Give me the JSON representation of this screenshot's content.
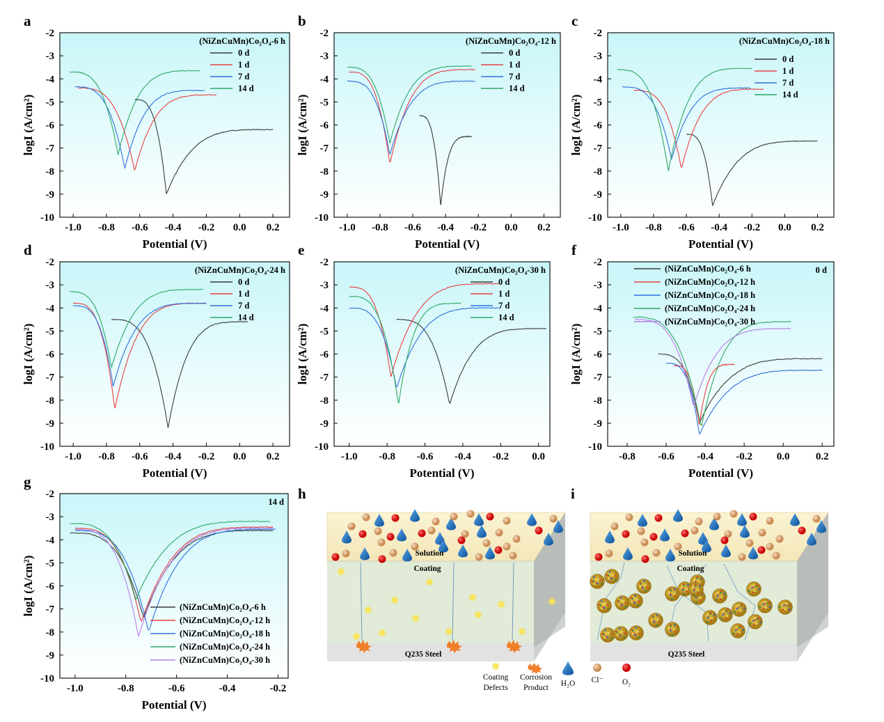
{
  "figure": {
    "xlabel": "Potential (V)",
    "ylabel": "logI (A/cm²)",
    "series_colors": [
      "#3a3a3a",
      "#e8403f",
      "#2e6fdc",
      "#2ea865",
      "#b77ce6"
    ]
  },
  "chart_data": [
    {
      "label": "a",
      "type": "line",
      "title": "(NiZnCuMn)Co₂O₄-6 h",
      "xlim": [
        -1.08,
        0.3
      ],
      "ylim": [
        -10,
        -2
      ],
      "xticks": [
        "-1.0",
        "-0.8",
        "-0.6",
        "-0.4",
        "-0.2",
        "0.0",
        "0.2"
      ],
      "yticks": [
        "-10",
        "-9",
        "-8",
        "-7",
        "-6",
        "-5",
        "-4",
        "-3",
        "-2"
      ],
      "series": [
        {
          "name": "0 d",
          "ecorr": -0.44,
          "xstart": -0.63,
          "xend": 0.2,
          "ymin": -9.0,
          "yleft": -4.9,
          "yright": -6.2
        },
        {
          "name": "1 d",
          "ecorr": -0.63,
          "xstart": -0.97,
          "xend": -0.14,
          "ymin": -8.0,
          "yleft": -4.4,
          "yright": -4.7
        },
        {
          "name": "7 d",
          "ecorr": -0.69,
          "xstart": -0.99,
          "xend": -0.21,
          "ymin": -7.9,
          "yleft": -4.35,
          "yright": -4.5
        },
        {
          "name": "14 d",
          "ecorr": -0.73,
          "xstart": -1.02,
          "xend": -0.24,
          "ymin": -7.3,
          "yleft": -3.7,
          "yright": -3.65
        }
      ]
    },
    {
      "label": "b",
      "type": "line",
      "title": "(NiZnCuMn)Co₂O₄-12 h",
      "xlim": [
        -1.08,
        0.3
      ],
      "ylim": [
        -10,
        -2
      ],
      "xticks": [
        "-1.0",
        "-0.8",
        "-0.6",
        "-0.4",
        "-0.2",
        "0.0",
        "0.2"
      ],
      "yticks": [
        "-10",
        "-9",
        "-8",
        "-7",
        "-6",
        "-5",
        "-4",
        "-3",
        "-2"
      ],
      "series": [
        {
          "name": "0 d",
          "ecorr": -0.43,
          "xstart": -0.56,
          "xend": -0.24,
          "ymin": -9.5,
          "yleft": -5.6,
          "yright": -6.5
        },
        {
          "name": "1 d",
          "ecorr": -0.74,
          "xstart": -0.99,
          "xend": -0.22,
          "ymin": -7.7,
          "yleft": -3.7,
          "yright": -3.6
        },
        {
          "name": "7 d",
          "ecorr": -0.74,
          "xstart": -1.0,
          "xend": -0.22,
          "ymin": -7.3,
          "yleft": -4.1,
          "yright": -4.1
        },
        {
          "name": "14 d",
          "ecorr": -0.74,
          "xstart": -1.0,
          "xend": -0.24,
          "ymin": -6.8,
          "yleft": -3.5,
          "yright": -3.45
        }
      ]
    },
    {
      "label": "c",
      "type": "line",
      "title": "(NiZnCuMn)Co₂O₄-18 h",
      "xlim": [
        -1.08,
        0.3
      ],
      "ylim": [
        -10,
        -2
      ],
      "xticks": [
        "-1.0",
        "-0.8",
        "-0.6",
        "-0.4",
        "-0.2",
        "0.0",
        "0.2"
      ],
      "yticks": [
        "-10",
        "-9",
        "-8",
        "-7",
        "-6",
        "-5",
        "-4",
        "-3",
        "-2"
      ],
      "series": [
        {
          "name": "0 d",
          "ecorr": -0.44,
          "xstart": -0.6,
          "xend": 0.2,
          "ymin": -9.5,
          "yleft": -6.4,
          "yright": -6.7
        },
        {
          "name": "1 d",
          "ecorr": -0.63,
          "xstart": -0.92,
          "xend": -0.13,
          "ymin": -7.9,
          "yleft": -4.5,
          "yright": -4.45
        },
        {
          "name": "7 d",
          "ecorr": -0.69,
          "xstart": -0.99,
          "xend": -0.21,
          "ymin": -7.5,
          "yleft": -4.35,
          "yright": -4.4
        },
        {
          "name": "14 d",
          "ecorr": -0.71,
          "xstart": -1.02,
          "xend": -0.2,
          "ymin": -8.0,
          "yleft": -3.6,
          "yright": -3.55
        }
      ]
    },
    {
      "label": "d",
      "type": "line",
      "title": "(NiZnCuMn)Co₂O₄-24 h",
      "xlim": [
        -1.08,
        0.3
      ],
      "ylim": [
        -10,
        -2
      ],
      "xticks": [
        "-1.0",
        "-0.8",
        "-0.6",
        "-0.4",
        "-0.2",
        "0.0",
        "0.2"
      ],
      "yticks": [
        "-10",
        "-9",
        "-8",
        "-7",
        "-6",
        "-5",
        "-4",
        "-3",
        "-2"
      ],
      "series": [
        {
          "name": "0 d",
          "ecorr": -0.43,
          "xstart": -0.77,
          "xend": 0.05,
          "ymin": -9.2,
          "yleft": -4.5,
          "yright": -4.6
        },
        {
          "name": "1 d",
          "ecorr": -0.75,
          "xstart": -1.0,
          "xend": -0.2,
          "ymin": -8.4,
          "yleft": -3.8,
          "yright": -3.8
        },
        {
          "name": "7 d",
          "ecorr": -0.76,
          "xstart": -1.0,
          "xend": -0.2,
          "ymin": -7.4,
          "yleft": -3.9,
          "yright": -3.8
        },
        {
          "name": "14 d",
          "ecorr": -0.77,
          "xstart": -1.02,
          "xend": -0.22,
          "ymin": -6.6,
          "yleft": -3.3,
          "yright": -3.2
        }
      ]
    },
    {
      "label": "e",
      "type": "line",
      "title": "(NiZnCuMn)Co₂O₄-30 h",
      "xlim": [
        -1.08,
        0.06
      ],
      "ylim": [
        -10,
        -2
      ],
      "xticks": [
        "-1.0",
        "-0.8",
        "-0.6",
        "-0.4",
        "-0.2",
        "0.0"
      ],
      "yticks": [
        "-10",
        "-9",
        "-8",
        "-7",
        "-6",
        "-5",
        "-4",
        "-3",
        "-2"
      ],
      "series": [
        {
          "name": "0 d",
          "ecorr": -0.47,
          "xstart": -0.75,
          "xend": 0.04,
          "ymin": -8.2,
          "yleft": -4.5,
          "yright": -4.9
        },
        {
          "name": "1 d",
          "ecorr": -0.78,
          "xstart": -1.0,
          "xend": -0.21,
          "ymin": -7.0,
          "yleft": -3.1,
          "yright": -2.95
        },
        {
          "name": "7 d",
          "ecorr": -0.75,
          "xstart": -1.0,
          "xend": -0.21,
          "ymin": -7.5,
          "yleft": -4.0,
          "yright": -4.0
        },
        {
          "name": "14 d",
          "ecorr": -0.74,
          "xstart": -1.0,
          "xend": -0.41,
          "ymin": -8.2,
          "yleft": -3.5,
          "yright": -3.8
        }
      ]
    },
    {
      "label": "f",
      "type": "line",
      "title": "0 d",
      "xlim": [
        -0.9,
        0.26
      ],
      "ylim": [
        -10,
        -2
      ],
      "xticks": [
        "-0.8",
        "-0.6",
        "-0.4",
        "-0.2",
        "0.0",
        "0.2"
      ],
      "yticks": [
        "-10",
        "-9",
        "-8",
        "-7",
        "-6",
        "-5",
        "-4",
        "-3",
        "-2"
      ],
      "series": [
        {
          "name": "(NiZnCuMn)Co₂O₄-6 h",
          "ecorr": -0.43,
          "xstart": -0.64,
          "xend": 0.2,
          "ymin": -9.0,
          "yleft": -6.0,
          "yright": -6.2
        },
        {
          "name": "(NiZnCuMn)Co₂O₄-12 h",
          "ecorr": -0.43,
          "xstart": -0.56,
          "xend": -0.25,
          "ymin": -9.1,
          "yleft": -6.5,
          "yright": -6.45
        },
        {
          "name": "(NiZnCuMn)Co₂O₄-18 h",
          "ecorr": -0.43,
          "xstart": -0.6,
          "xend": 0.2,
          "ymin": -9.5,
          "yleft": -6.4,
          "yright": -6.7
        },
        {
          "name": "(NiZnCuMn)Co₂O₄-24 h",
          "ecorr": -0.42,
          "xstart": -0.77,
          "xend": 0.04,
          "ymin": -9.2,
          "yleft": -4.4,
          "yright": -4.6
        },
        {
          "name": "(NiZnCuMn)Co₂O₄-30 h",
          "ecorr": -0.46,
          "xstart": -0.76,
          "xend": 0.04,
          "ymin": -8.3,
          "yleft": -4.5,
          "yright": -4.9
        }
      ]
    },
    {
      "label": "g",
      "type": "line",
      "title": "14 d",
      "xlim": [
        -1.06,
        -0.16
      ],
      "ylim": [
        -10,
        -2
      ],
      "xticks": [
        "-1.0",
        "-0.8",
        "-0.6",
        "-0.4",
        "-0.2"
      ],
      "yticks": [
        "-10",
        "-9",
        "-8",
        "-7",
        "-6",
        "-5",
        "-4",
        "-3",
        "-2"
      ],
      "series": [
        {
          "name": "(NiZnCuMn)Co₂O₄-6 h",
          "ecorr": -0.73,
          "xstart": -1.02,
          "xend": -0.22,
          "ymin": -7.4,
          "yleft": -3.7,
          "yright": -3.6
        },
        {
          "name": "(NiZnCuMn)Co₂O₄-12 h",
          "ecorr": -0.74,
          "xstart": -1.0,
          "xend": -0.22,
          "ymin": -7.6,
          "yleft": -3.5,
          "yright": -3.45
        },
        {
          "name": "(NiZnCuMn)Co₂O₄-18 h",
          "ecorr": -0.71,
          "xstart": -1.0,
          "xend": -0.21,
          "ymin": -8.0,
          "yleft": -3.6,
          "yright": -3.55
        },
        {
          "name": "(NiZnCuMn)Co₂O₄-24 h",
          "ecorr": -0.76,
          "xstart": -1.02,
          "xend": -0.23,
          "ymin": -6.6,
          "yleft": -3.3,
          "yright": -3.2
        },
        {
          "name": "(NiZnCuMn)Co₂O₄-30 h",
          "ecorr": -0.75,
          "xstart": -1.0,
          "xend": -0.22,
          "ymin": -8.2,
          "yleft": -3.55,
          "yright": -3.5
        }
      ]
    }
  ],
  "schematics": {
    "h": {
      "label": "h",
      "solution": "Solution",
      "coating": "Coating",
      "steel": "Q235 Steel"
    },
    "i": {
      "label": "i",
      "solution": "Solution",
      "coating": "Coating",
      "steel": "Q235 Steel"
    }
  },
  "legend": {
    "coating_defects": "Coating Defects",
    "corrosion_product": "Corrosion Product",
    "h2o": "H₂O",
    "cl": "Cl⁻",
    "o2": "O₂"
  }
}
